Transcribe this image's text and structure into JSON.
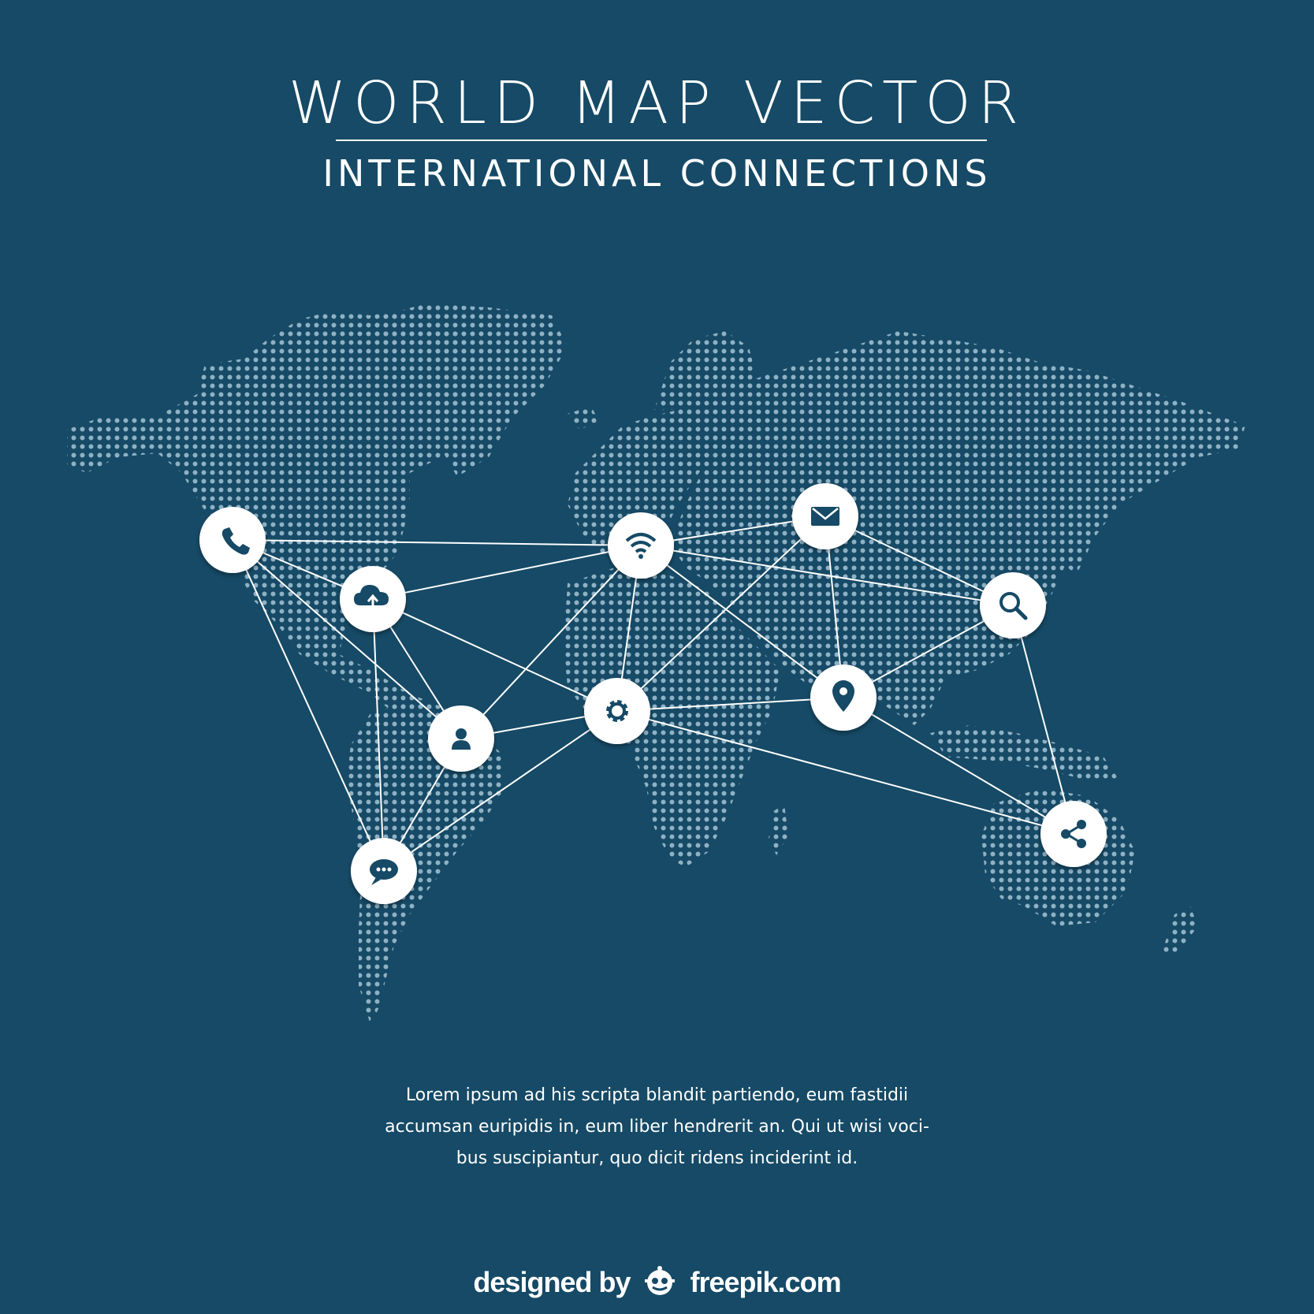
{
  "header": {
    "title": "WORLD MAP VECTOR",
    "subtitle": "INTERNATIONAL CONNECTIONS"
  },
  "colors": {
    "background": "#164a66",
    "dots": "#8fb1c4",
    "node_fill": "#ffffff",
    "icon": "#164a66",
    "line": "#ffffff"
  },
  "network": {
    "nodes": [
      {
        "id": "phone",
        "icon": "phone-icon"
      },
      {
        "id": "cloud",
        "icon": "cloud-upload-icon"
      },
      {
        "id": "user",
        "icon": "user-icon"
      },
      {
        "id": "chat",
        "icon": "chat-bubble-icon"
      },
      {
        "id": "wifi",
        "icon": "wifi-icon"
      },
      {
        "id": "gear",
        "icon": "gear-icon"
      },
      {
        "id": "mail",
        "icon": "mail-icon"
      },
      {
        "id": "pin",
        "icon": "location-pin-icon"
      },
      {
        "id": "search",
        "icon": "search-icon"
      },
      {
        "id": "share",
        "icon": "share-icon"
      }
    ],
    "links": [
      [
        "phone",
        "wifi"
      ],
      [
        "phone",
        "cloud"
      ],
      [
        "phone",
        "user"
      ],
      [
        "phone",
        "chat"
      ],
      [
        "cloud",
        "wifi"
      ],
      [
        "cloud",
        "user"
      ],
      [
        "cloud",
        "chat"
      ],
      [
        "cloud",
        "gear"
      ],
      [
        "user",
        "gear"
      ],
      [
        "user",
        "wifi"
      ],
      [
        "user",
        "chat"
      ],
      [
        "chat",
        "gear"
      ],
      [
        "wifi",
        "mail"
      ],
      [
        "wifi",
        "search"
      ],
      [
        "wifi",
        "gear"
      ],
      [
        "wifi",
        "pin"
      ],
      [
        "gear",
        "mail"
      ],
      [
        "gear",
        "pin"
      ],
      [
        "gear",
        "share"
      ],
      [
        "mail",
        "pin"
      ],
      [
        "mail",
        "search"
      ],
      [
        "pin",
        "search"
      ],
      [
        "pin",
        "share"
      ],
      [
        "search",
        "share"
      ]
    ]
  },
  "body_text": {
    "line1": "Lorem ipsum ad his scripta blandit partiendo, eum fastidii",
    "line2": "accumsan euripidis in, eum liber hendrerit an. Qui ut wisi voci-",
    "line3": "bus suscipiantur, quo dicit ridens inciderint id."
  },
  "credit": {
    "prefix": "designed by",
    "brand": "freepik.com"
  }
}
